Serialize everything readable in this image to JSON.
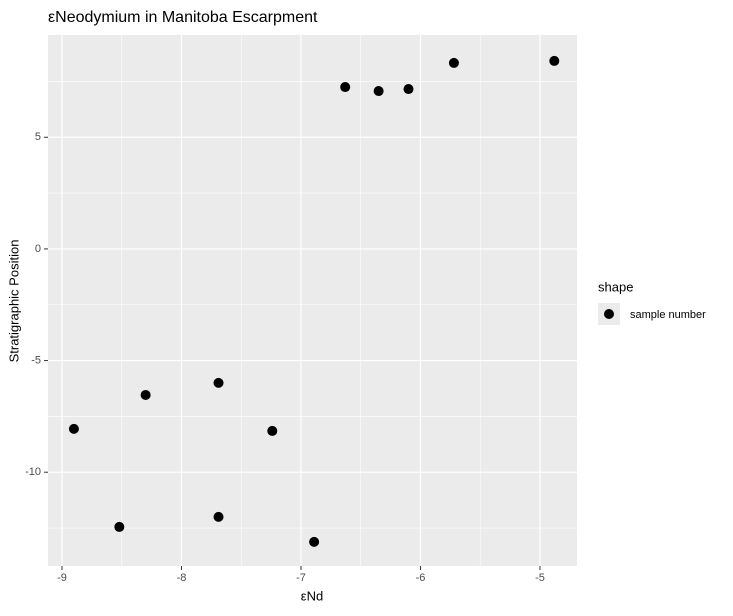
{
  "chart_data": {
    "type": "scatter",
    "title": "εNeodymium in Manitoba Escarpment",
    "x_label": "εNd",
    "y_label": "Stratigraphic Position",
    "series": [
      {
        "name": "sample number",
        "color": "#000000",
        "x": [
          -8.9,
          -8.52,
          -8.3,
          -7.69,
          -7.69,
          -7.24,
          -6.89,
          -6.63,
          -6.35,
          -6.1,
          -5.72,
          -4.88
        ],
        "values": [
          -8.06,
          -12.45,
          -6.54,
          -6.0,
          -12.0,
          -8.15,
          -13.12,
          7.25,
          7.07,
          7.16,
          8.33,
          8.42
        ]
      }
    ],
    "xlim": [
      -9.117,
      -4.69
    ],
    "xticks": [
      -9,
      -8,
      -7,
      -6,
      -5
    ],
    "xminor": [
      -8.5,
      -7.5,
      -6.5,
      -5.5
    ],
    "ylim": [
      -14.2,
      9.58
    ],
    "yticks": [
      -10,
      -5,
      0,
      5
    ],
    "yminor": [
      -12.5,
      -7.5,
      -2.5,
      2.5,
      7.5
    ],
    "grid": true,
    "legend_title": "shape",
    "legend_position": "right"
  }
}
